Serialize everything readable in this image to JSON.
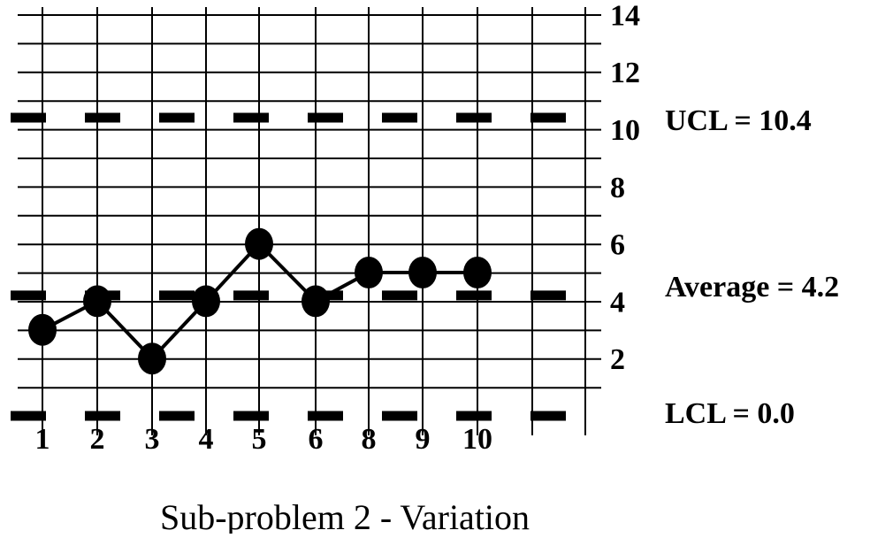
{
  "chart_data": {
    "type": "line",
    "title": "",
    "caption": "Sub-problem 2 - Variation",
    "xlabel": "",
    "ylabel": "",
    "categories": [
      "1",
      "2",
      "3",
      "4",
      "5",
      "6",
      "8",
      "9",
      "10"
    ],
    "values": [
      3,
      4,
      2,
      4,
      6,
      4,
      5,
      5,
      5
    ],
    "y_ticks": [
      "2",
      "4",
      "6",
      "8",
      "10",
      "12",
      "14"
    ],
    "ylim": [
      0,
      14
    ],
    "y_axis_side": "right",
    "grid": true,
    "control_lines": [
      {
        "key": "ucl",
        "label": "UCL = 10.4",
        "value": 10.4
      },
      {
        "key": "average",
        "label": "Average = 4.2",
        "value": 4.2
      },
      {
        "key": "lcl",
        "label": "LCL = 0.0",
        "value": 0.0
      }
    ],
    "line_color": "#000000",
    "marker_color": "#000000"
  }
}
